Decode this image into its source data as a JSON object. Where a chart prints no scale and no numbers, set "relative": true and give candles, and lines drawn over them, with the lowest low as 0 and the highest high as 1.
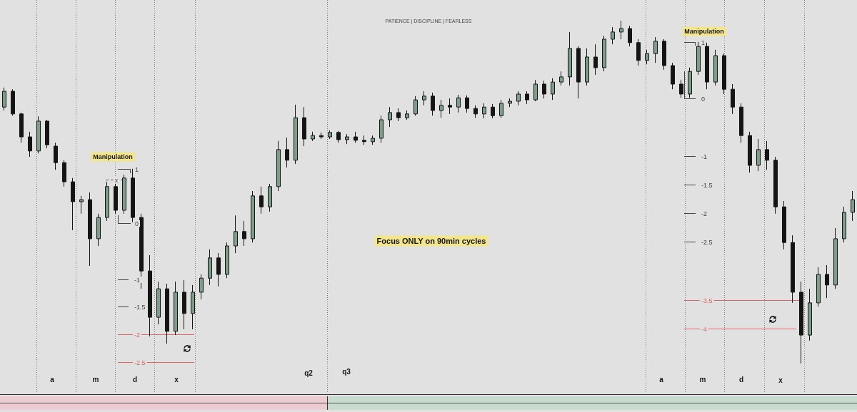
{
  "chart_data": {
    "type": "candlestick",
    "subtitle": "PATIENCE | DISCIPLINE | FEARLESS",
    "relative": true,
    "categories": [
      null,
      null,
      null,
      null,
      null,
      null,
      null,
      null,
      null,
      null,
      null,
      null,
      null,
      null,
      null,
      null,
      null,
      null,
      null,
      null,
      null,
      null,
      null,
      null,
      null,
      null,
      null,
      null,
      null,
      null,
      null,
      null,
      null,
      null,
      null,
      null,
      null,
      null,
      null,
      null,
      null,
      null,
      null,
      null,
      null,
      null,
      null,
      null,
      null,
      null,
      null,
      null,
      null,
      null,
      null,
      null,
      null,
      null,
      null,
      null,
      null,
      null,
      null,
      null,
      null,
      null,
      null,
      null,
      null,
      null,
      null,
      null,
      null,
      null,
      null,
      null,
      null,
      null,
      null,
      null,
      null,
      null,
      null,
      null,
      null,
      null,
      null,
      null,
      null,
      null,
      null,
      null,
      null,
      null,
      null,
      null,
      null,
      null,
      null,
      null
    ],
    "ohlc": [
      [
        0.748,
        0.805,
        0.738,
        0.794
      ],
      [
        0.794,
        0.8,
        0.723,
        0.728
      ],
      [
        0.728,
        0.732,
        0.644,
        0.661
      ],
      [
        0.661,
        0.676,
        0.603,
        0.62
      ],
      [
        0.62,
        0.721,
        0.613,
        0.707
      ],
      [
        0.707,
        0.711,
        0.628,
        0.638
      ],
      [
        0.634,
        0.644,
        0.565,
        0.586
      ],
      [
        0.586,
        0.593,
        0.516,
        0.53
      ],
      [
        0.53,
        0.541,
        0.389,
        0.472
      ],
      [
        0.472,
        0.489,
        0.437,
        0.478
      ],
      [
        0.478,
        0.499,
        0.285,
        0.364
      ],
      [
        0.364,
        0.437,
        0.343,
        0.426
      ],
      [
        0.426,
        0.53,
        0.416,
        0.516
      ],
      [
        0.516,
        0.524,
        0.437,
        0.447
      ],
      [
        0.447,
        0.551,
        0.437,
        0.541
      ],
      [
        0.541,
        0.568,
        0.412,
        0.426
      ],
      [
        0.426,
        0.437,
        0.218,
        0.27
      ],
      [
        0.27,
        0.316,
        0.079,
        0.135
      ],
      [
        0.135,
        0.239,
        0.114,
        0.218
      ],
      [
        0.218,
        0.233,
        0.058,
        0.094
      ],
      [
        0.094,
        0.239,
        0.083,
        0.208
      ],
      [
        0.208,
        0.243,
        0.1,
        0.146
      ],
      [
        0.146,
        0.229,
        0.1,
        0.208
      ],
      [
        0.208,
        0.26,
        0.187,
        0.249
      ],
      [
        0.249,
        0.333,
        0.229,
        0.308
      ],
      [
        0.308,
        0.322,
        0.225,
        0.26
      ],
      [
        0.26,
        0.353,
        0.249,
        0.343
      ],
      [
        0.343,
        0.432,
        0.322,
        0.385
      ],
      [
        0.385,
        0.416,
        0.343,
        0.364
      ],
      [
        0.364,
        0.503,
        0.353,
        0.489
      ],
      [
        0.489,
        0.516,
        0.437,
        0.457
      ],
      [
        0.457,
        0.524,
        0.443,
        0.516
      ],
      [
        0.516,
        0.649,
        0.503,
        0.624
      ],
      [
        0.624,
        0.659,
        0.572,
        0.593
      ],
      [
        0.593,
        0.755,
        0.582,
        0.717
      ],
      [
        0.717,
        0.748,
        0.634,
        0.655
      ],
      [
        0.655,
        0.676,
        0.649,
        0.665
      ],
      [
        0.665,
        0.674,
        0.655,
        0.661
      ],
      [
        0.661,
        0.68,
        0.655,
        0.674
      ],
      [
        0.674,
        0.678,
        0.644,
        0.653
      ],
      [
        0.653,
        0.669,
        0.64,
        0.661
      ],
      [
        0.661,
        0.676,
        0.644,
        0.651
      ],
      [
        0.651,
        0.665,
        0.638,
        0.647
      ],
      [
        0.647,
        0.665,
        0.638,
        0.657
      ],
      [
        0.657,
        0.723,
        0.644,
        0.711
      ],
      [
        0.711,
        0.748,
        0.69,
        0.732
      ],
      [
        0.732,
        0.744,
        0.707,
        0.717
      ],
      [
        0.717,
        0.738,
        0.711,
        0.728
      ],
      [
        0.728,
        0.78,
        0.723,
        0.769
      ],
      [
        0.769,
        0.794,
        0.753,
        0.78
      ],
      [
        0.78,
        0.79,
        0.723,
        0.738
      ],
      [
        0.738,
        0.769,
        0.717,
        0.753
      ],
      [
        0.753,
        0.773,
        0.728,
        0.748
      ],
      [
        0.748,
        0.784,
        0.732,
        0.775
      ],
      [
        0.775,
        0.782,
        0.732,
        0.744
      ],
      [
        0.744,
        0.753,
        0.717,
        0.728
      ],
      [
        0.728,
        0.759,
        0.715,
        0.748
      ],
      [
        0.748,
        0.757,
        0.715,
        0.723
      ],
      [
        0.723,
        0.769,
        0.717,
        0.759
      ],
      [
        0.759,
        0.773,
        0.748,
        0.765
      ],
      [
        0.765,
        0.794,
        0.753,
        0.786
      ],
      [
        0.786,
        0.794,
        0.757,
        0.769
      ],
      [
        0.769,
        0.827,
        0.765,
        0.815
      ],
      [
        0.815,
        0.825,
        0.773,
        0.786
      ],
      [
        0.786,
        0.832,
        0.769,
        0.821
      ],
      [
        0.821,
        0.852,
        0.811,
        0.836
      ],
      [
        0.836,
        0.967,
        0.811,
        0.919
      ],
      [
        0.919,
        0.925,
        0.773,
        0.821
      ],
      [
        0.821,
        0.919,
        0.811,
        0.894
      ],
      [
        0.894,
        0.931,
        0.842,
        0.863
      ],
      [
        0.863,
        0.956,
        0.852,
        0.946
      ],
      [
        0.946,
        0.981,
        0.931,
        0.967
      ],
      [
        0.967,
        1.0,
        0.946,
        0.977
      ],
      [
        0.977,
        0.985,
        0.925,
        0.936
      ],
      [
        0.936,
        0.946,
        0.869,
        0.884
      ],
      [
        0.884,
        0.915,
        0.873,
        0.904
      ],
      [
        0.904,
        0.952,
        0.877,
        0.94
      ],
      [
        0.94,
        0.946,
        0.857,
        0.869
      ],
      [
        0.869,
        0.877,
        0.8,
        0.815
      ],
      [
        0.815,
        0.827,
        0.775,
        0.786
      ],
      [
        0.786,
        0.863,
        0.775,
        0.852
      ],
      [
        0.852,
        0.938,
        0.842,
        0.925
      ],
      [
        0.925,
        0.936,
        0.8,
        0.821
      ],
      [
        0.821,
        0.915,
        0.811,
        0.898
      ],
      [
        0.898,
        0.904,
        0.786,
        0.8
      ],
      [
        0.8,
        0.815,
        0.728,
        0.748
      ],
      [
        0.748,
        0.759,
        0.644,
        0.665
      ],
      [
        0.665,
        0.676,
        0.557,
        0.578
      ],
      [
        0.578,
        0.655,
        0.561,
        0.624
      ],
      [
        0.624,
        0.649,
        0.565,
        0.593
      ],
      [
        0.593,
        0.603,
        0.437,
        0.457
      ],
      [
        0.457,
        0.474,
        0.333,
        0.353
      ],
      [
        0.353,
        0.374,
        0.177,
        0.208
      ],
      [
        0.208,
        0.239,
        0.0,
        0.083
      ],
      [
        0.083,
        0.218,
        0.067,
        0.177
      ],
      [
        0.177,
        0.281,
        0.166,
        0.26
      ],
      [
        0.26,
        0.287,
        0.191,
        0.229
      ],
      [
        0.229,
        0.395,
        0.218,
        0.364
      ],
      [
        0.364,
        0.457,
        0.353,
        0.441
      ],
      [
        0.441,
        0.503,
        0.416,
        0.478
      ]
    ],
    "colors": [
      "#7c9d89",
      "#151515",
      "#151515",
      "#151515",
      "#7c9d89",
      "#151515",
      "#151515",
      "#151515",
      "#151515",
      "#7c9d89",
      "#151515",
      "#7c9d89",
      "#7c9d89",
      "#151515",
      "#7c9d89",
      "#151515",
      "#151515",
      "#151515",
      "#7c9d89",
      "#151515",
      "#7c9d89",
      "#151515",
      "#7c9d89",
      "#7c9d89",
      "#7c9d89",
      "#151515",
      "#7c9d89",
      "#7c9d89",
      "#151515",
      "#7c9d89",
      "#151515",
      "#7c9d89",
      "#7c9d89",
      "#151515",
      "#7c9d89",
      "#151515",
      "#7c9d89",
      "#151515",
      "#7c9d89",
      "#151515",
      "#7c9d89",
      "#151515",
      "#151515",
      "#7c9d89",
      "#7c9d89",
      "#7c9d89",
      "#151515",
      "#7c9d89",
      "#7c9d89",
      "#7c9d89",
      "#151515",
      "#7c9d89",
      "#151515",
      "#7c9d89",
      "#151515",
      "#151515",
      "#7c9d89",
      "#151515",
      "#7c9d89",
      "#7c9d89",
      "#7c9d89",
      "#151515",
      "#7c9d89",
      "#151515",
      "#7c9d89",
      "#7c9d89",
      "#7c9d89",
      "#151515",
      "#7c9d89",
      "#151515",
      "#7c9d89",
      "#7c9d89",
      "#7c9d89",
      "#151515",
      "#151515",
      "#7c9d89",
      "#7c9d89",
      "#151515",
      "#151515",
      "#151515",
      "#7c9d89",
      "#7c9d89",
      "#151515",
      "#7c9d89",
      "#151515",
      "#151515",
      "#151515",
      "#151515",
      "#7c9d89",
      "#151515",
      "#151515",
      "#151515",
      "#151515",
      "#151515",
      "#7c9d89",
      "#7c9d89",
      "#151515",
      "#7c9d89",
      "#7c9d89",
      "#7c9d89"
    ],
    "ref_lines": [
      {
        "axis": "y",
        "value": 0.536,
        "label": "x",
        "color": "#555555",
        "line_style": "dashed"
      },
      {
        "axis": "y",
        "value": 0.085,
        "color": "#e06666"
      },
      {
        "axis": "y",
        "value": 0.004,
        "color": "#e06666"
      },
      {
        "axis": "y",
        "value": 0.185,
        "color": "#e06666"
      },
      {
        "axis": "y",
        "value": 0.102,
        "color": "#e06666"
      }
    ],
    "annotations": [
      "Manipulation",
      "Manipulation",
      "Focus ONLY on 90min cycles",
      "a",
      "m",
      "d",
      "x",
      "q2",
      "q3",
      "a",
      "m",
      "d",
      "x",
      "1",
      "0",
      "-1",
      "-1.5",
      "-2",
      "-2.5",
      "1",
      "0",
      "-1",
      "-1.5",
      "-2",
      "-2.5",
      "-3.5",
      "-4"
    ]
  }
}
